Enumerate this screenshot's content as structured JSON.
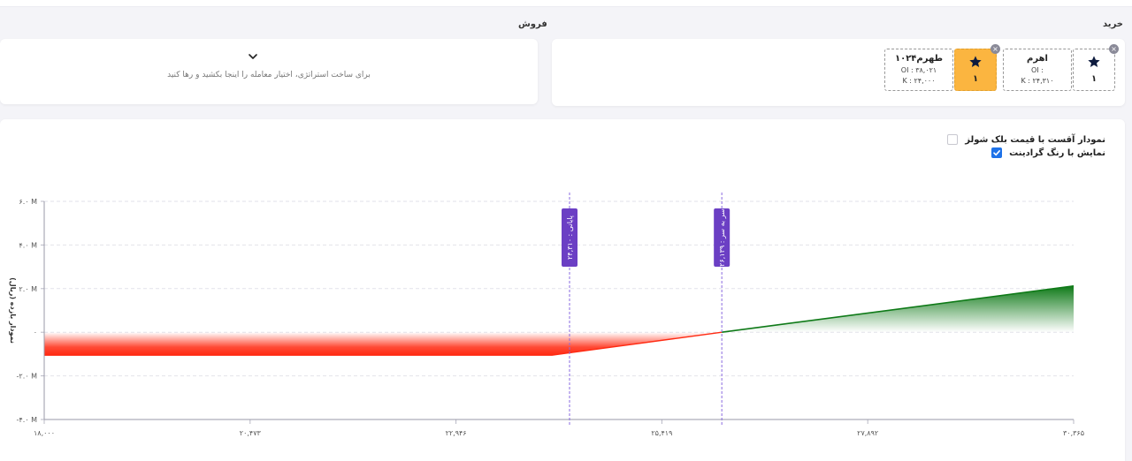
{
  "sections": {
    "buy_title": "خرید",
    "sell_title": "فروش"
  },
  "sell_panel": {
    "drop_hint": "برای ساخت استراتژی، اختیار معامله را اینجا بکشید و رها کنید"
  },
  "buy_legs": [
    {
      "type": "star",
      "count": "۱",
      "highlighted": false
    },
    {
      "type": "asset",
      "name": "اهرم",
      "oi": ": OI",
      "k": "K : ۲۴,۳۱۰"
    },
    {
      "type": "star",
      "count": "۱",
      "highlighted": true
    },
    {
      "type": "asset",
      "name": "طهرم۱۰۲۴",
      "oi": "OI : ۳۸,۰۲۱",
      "k": "K : ۲۴,۰۰۰"
    }
  ],
  "close_symbol": "×",
  "options": [
    {
      "label": "نمودار آقست با قیمت بلک شولز",
      "checked": false
    },
    {
      "label": "نمایش با رنگ گرادینت",
      "checked": true
    }
  ],
  "colors": {
    "accent": "#1e72e8",
    "star_box": "#fbb540",
    "loss": "#ff2a12",
    "profit": "#0f7a18",
    "marker": "#6b3fc4"
  },
  "chart_data": {
    "type": "area",
    "ylabel": "نمودار بازده (ریال)",
    "xlabel": "",
    "xlim": [
      18000,
      30365
    ],
    "ylim": [
      -4000000,
      6000000
    ],
    "x": [
      18000,
      24100,
      26139,
      30365
    ],
    "y": [
      -1050000,
      -1050000,
      0,
      2120000
    ],
    "x_ticks": [
      {
        "value": 18000,
        "label": "۱۸,۰۰۰"
      },
      {
        "value": 20473,
        "label": "۲۰,۴۷۳"
      },
      {
        "value": 22946,
        "label": "۲۲,۹۴۶"
      },
      {
        "value": 25419,
        "label": "۲۵,۴۱۹"
      },
      {
        "value": 27892,
        "label": "۲۷,۸۹۲"
      },
      {
        "value": 30365,
        "label": "۳۰,۳۶۵"
      }
    ],
    "y_ticks": [
      {
        "value": 6000000,
        "label": "۶.۰ M"
      },
      {
        "value": 4000000,
        "label": "۴.۰ M"
      },
      {
        "value": 2000000,
        "label": "۲.۰ M"
      },
      {
        "value": 0,
        "label": "۰"
      },
      {
        "value": -2000000,
        "label": "-۲.۰ M"
      },
      {
        "value": -4000000,
        "label": "-۴.۰ M"
      }
    ],
    "markers": [
      {
        "value": 24310,
        "label": "پایانی : ۲۴,۳۱۰"
      },
      {
        "value": 26139,
        "label": "سر به سر : ۲۶,۱۳۹"
      }
    ],
    "gradient_fill": true,
    "grid": true
  }
}
